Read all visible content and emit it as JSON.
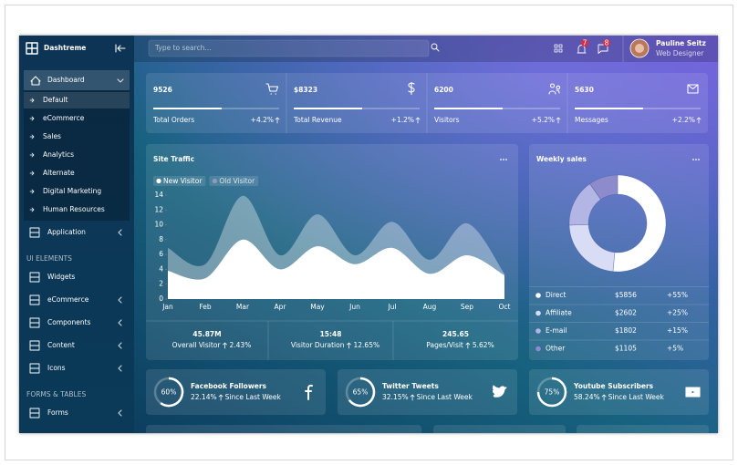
{
  "header": {
    "brand": "Dashtreme",
    "search_placeholder": "Type to search...",
    "alerts_badge": "7",
    "messages_badge": "8",
    "user_name": "Pauline Seitz",
    "user_role": "Web Designer"
  },
  "sidebar": {
    "active_menu": "Dashboard",
    "submenu": [
      "Default",
      "eCommerce",
      "Sales",
      "Analytics",
      "Alternate",
      "Digital Marketing",
      "Human Resources"
    ],
    "menu": [
      "Application"
    ],
    "ui_heading": "UI ELEMENTS",
    "ui_menu": [
      "Widgets",
      "eCommerce",
      "Components",
      "Content",
      "Icons"
    ],
    "forms_heading": "FORMS & TABLES",
    "forms_menu": [
      "Forms"
    ]
  },
  "stats": [
    {
      "value": "9526",
      "label": "Total Orders",
      "change": "+4.2%"
    },
    {
      "value": "$8323",
      "label": "Total Revenue",
      "change": "+1.2%"
    },
    {
      "value": "6200",
      "label": "Visitors",
      "change": "+5.2%"
    },
    {
      "value": "5630",
      "label": "Messages",
      "change": "+2.2%"
    }
  ],
  "chart_data": [
    {
      "type": "area",
      "title": "Site Traffic",
      "categories": [
        "Jan",
        "Feb",
        "Mar",
        "Apr",
        "May",
        "Jun",
        "Jul",
        "Aug",
        "Sep",
        "Oct"
      ],
      "series": [
        {
          "name": "New Visitor",
          "color": "#ffffff",
          "values": [
            3.8,
            2.8,
            8,
            4,
            7.1,
            4.7,
            6.9,
            3.4,
            5.9,
            3.2
          ]
        },
        {
          "name": "Old Visitor",
          "color": "rgba(255,255,255,0.35)",
          "values": [
            6.9,
            4.7,
            13.9,
            5.9,
            11.4,
            5.9,
            10.4,
            5.3,
            10.2,
            3.4
          ]
        }
      ],
      "ylim": [
        0,
        14
      ],
      "yticks": [
        0,
        2,
        4,
        6,
        8,
        10,
        12,
        14
      ]
    },
    {
      "type": "pie",
      "title": "Weekly sales",
      "categories": [
        "Direct",
        "Affiliate",
        "E-mail",
        "Other"
      ],
      "values": [
        5856,
        2602,
        1802,
        1105
      ],
      "value_labels": [
        "$5856",
        "$2602",
        "$1802",
        "$1105"
      ],
      "changes": [
        "+55%",
        "+25%",
        "+15%",
        "+5%"
      ],
      "colors": [
        "#ffffff",
        "#d9dcf5",
        "#b3b5e4",
        "#8e8bcc"
      ]
    }
  ],
  "traffic_summary": [
    {
      "value": "45.87M",
      "label": "Overall Visitor",
      "change": "2.43%"
    },
    {
      "value": "15:48",
      "label": "Visitor Duration",
      "change": "12.65%"
    },
    {
      "value": "245.65",
      "label": "Pages/Visit",
      "change": "5.62%"
    }
  ],
  "social": [
    {
      "percent": {
        "value": 60,
        "label": "60%"
      },
      "title": "Facebook Followers",
      "change": "22.14%",
      "note": "Since Last Week"
    },
    {
      "percent": {
        "value": 65,
        "label": "65%"
      },
      "title": "Twitter Tweets",
      "change": "32.15%",
      "note": "Since Last Week"
    },
    {
      "percent": {
        "value": 75,
        "label": "75%"
      },
      "title": "Youtube Subscribers",
      "change": "58.24%",
      "note": "Since Last Week"
    }
  ]
}
